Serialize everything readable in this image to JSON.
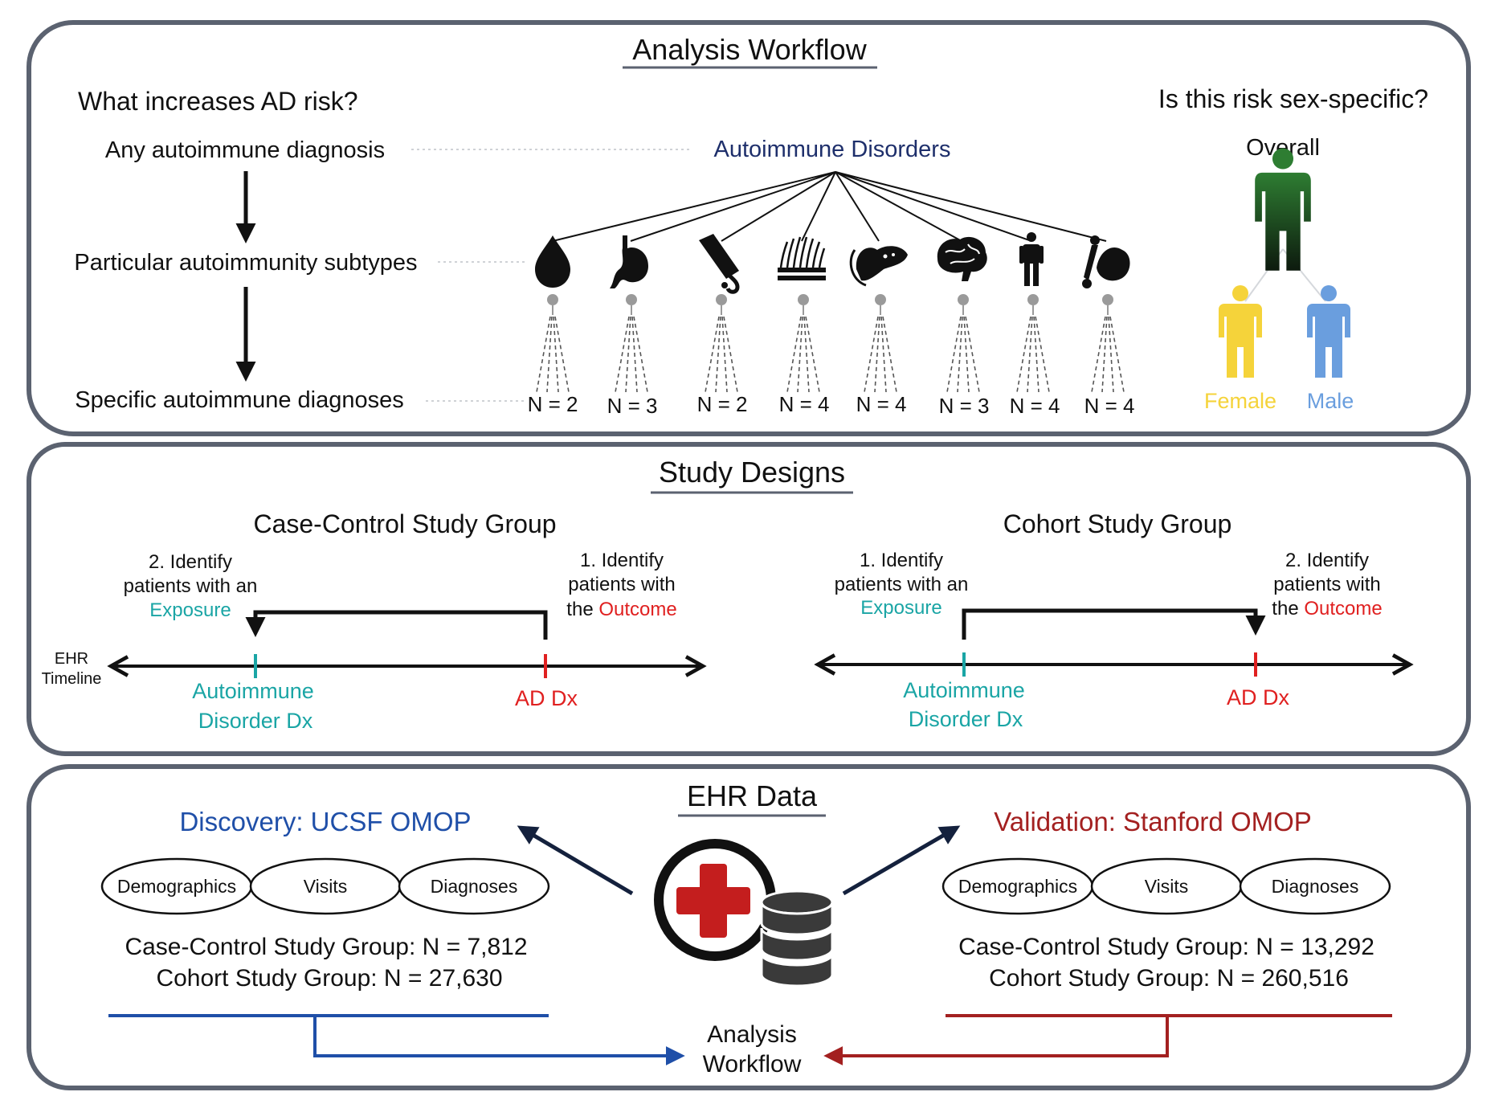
{
  "workflow": {
    "title": "Analysis Workflow",
    "question_left": "What increases AD risk?",
    "question_right": "Is this risk sex-specific?",
    "level1": "Any autoimmune diagnosis",
    "level2": "Particular autoimmunity subtypes",
    "level3": "Specific autoimmune diagnoses",
    "root_label": "Autoimmune Disorders",
    "subtypes": [
      {
        "icon": "blood-drop-icon",
        "n": "N = 2"
      },
      {
        "icon": "stomach-icon",
        "n": "N = 3"
      },
      {
        "icon": "intestine-icon",
        "n": "N = 2"
      },
      {
        "icon": "skin-icon",
        "n": "N = 4"
      },
      {
        "icon": "pancreas-icon",
        "n": "N = 4"
      },
      {
        "icon": "brain-icon",
        "n": "N = 3"
      },
      {
        "icon": "person-icon",
        "n": "N = 4"
      },
      {
        "icon": "muscle-bone-icon",
        "n": "N = 4"
      }
    ],
    "sex": {
      "overall": "Overall",
      "female": "Female",
      "male": "Male",
      "colors": {
        "overall": "#2e7d32",
        "female": "#f5d33a",
        "male": "#6a9ede"
      }
    }
  },
  "designs": {
    "title": "Study Designs",
    "ehr_label_1": "EHR",
    "ehr_label_2": "Timeline",
    "case_control": {
      "title": "Case-Control Study Group",
      "left_1": "2. Identify",
      "left_2": "patients with an",
      "left_3": "Exposure",
      "right_1": "1. Identify",
      "right_2": "patients with",
      "right_3a": "the ",
      "right_3b": "Outcome",
      "exposure_1": "Autoimmune",
      "exposure_2": "Disorder Dx",
      "outcome": "AD Dx"
    },
    "cohort": {
      "title": "Cohort Study Group",
      "left_1": "1. Identify",
      "left_2": "patients with an",
      "left_3": "Exposure",
      "right_1": "2. Identify",
      "right_2": "patients with",
      "right_3a": "the ",
      "right_3b": "Outcome",
      "exposure_1": "Autoimmune",
      "exposure_2": "Disorder Dx",
      "outcome": "AD Dx"
    },
    "colors": {
      "exposure": "#1aa5a5",
      "outcome": "#e02020"
    }
  },
  "ehr": {
    "title": "EHR Data",
    "discovery": {
      "title": "Discovery: UCSF OMOP",
      "pills": [
        "Demographics",
        "Visits",
        "Diagnoses"
      ],
      "line1": "Case-Control Study Group: N = 7,812",
      "line2": "Cohort Study Group: N = 27,630",
      "color": "#1f4fa8"
    },
    "validation": {
      "title": "Validation: Stanford OMOP",
      "pills": [
        "Demographics",
        "Visits",
        "Diagnoses"
      ],
      "line1": "Case-Control Study Group: N = 13,292",
      "line2": "Cohort Study Group: N = 260,516",
      "color": "#a32020"
    },
    "target_1": "Analysis",
    "target_2": "Workflow"
  }
}
